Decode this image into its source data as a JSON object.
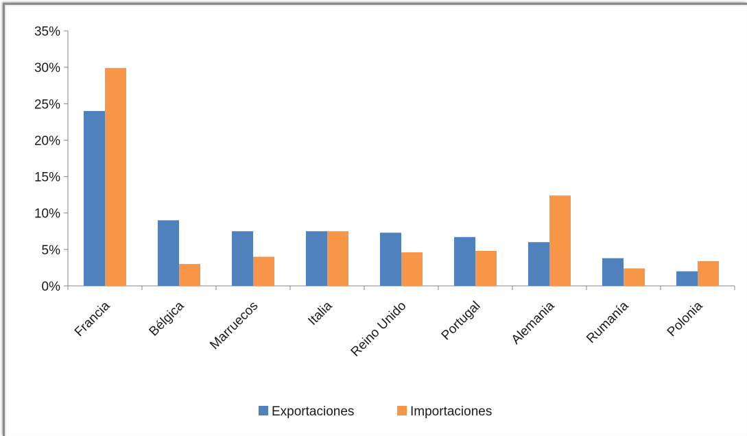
{
  "chart_data": {
    "type": "bar",
    "title": "",
    "xlabel": "",
    "ylabel": "",
    "categories": [
      "Francia",
      "Bélgica",
      "Marruecos",
      "Italia",
      "Reino Unido",
      "Portugal",
      "Alemania",
      "Rumanía",
      "Polonia"
    ],
    "series": [
      {
        "name": "Exportaciones",
        "color": "#4f81bd",
        "values": [
          24.0,
          9.0,
          7.5,
          7.5,
          7.3,
          6.7,
          6.0,
          3.8,
          2.0
        ]
      },
      {
        "name": "Importaciones",
        "color": "#f79646",
        "values": [
          29.9,
          3.0,
          4.0,
          7.5,
          4.6,
          4.8,
          12.4,
          2.4,
          3.4
        ]
      }
    ],
    "ylim": [
      0,
      35
    ],
    "yticks": [
      "0%",
      "5%",
      "10%",
      "15%",
      "20%",
      "25%",
      "30%",
      "35%"
    ],
    "grid": false,
    "legend_position": "bottom"
  }
}
